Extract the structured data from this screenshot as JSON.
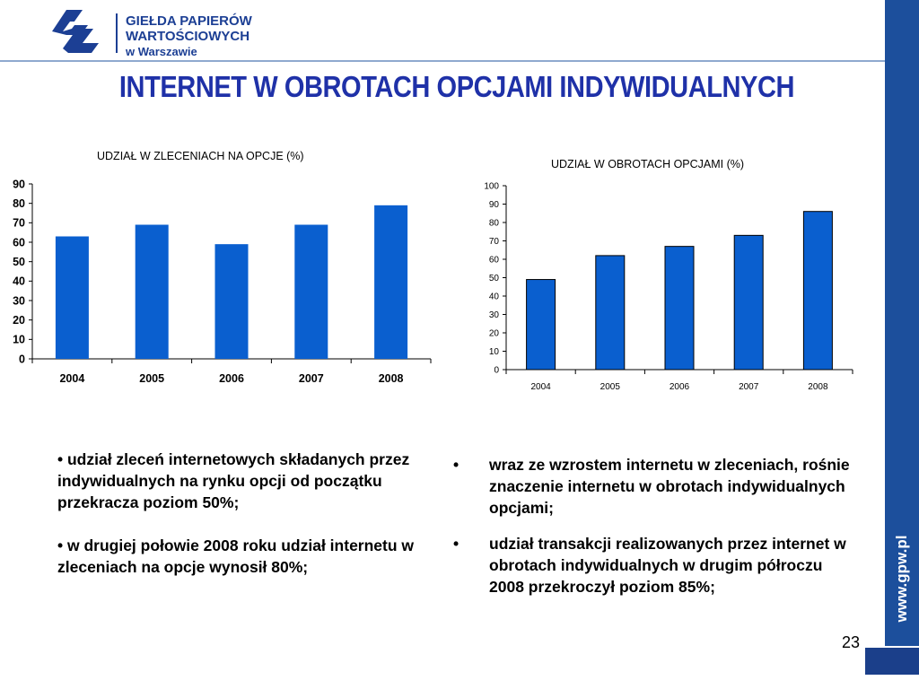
{
  "header": {
    "logo_line1": "GIEŁDA PAPIERÓW",
    "logo_line2": "WARTOŚCIOWYCH",
    "logo_line3": "w Warszawie",
    "side_url": "www.gpw.pl"
  },
  "title": "INTERNET W OBROTACH OPCJAMI INDYWIDUALNYCH",
  "colors": {
    "bar": "#0a5fcf",
    "brand": "#1c3f94",
    "title": "#1f31a8"
  },
  "chart_data": [
    {
      "type": "bar",
      "title": "UDZIAŁ W ZLECENIACH NA OPCJE (%)",
      "categories": [
        "2004",
        "2005",
        "2006",
        "2007",
        "2008"
      ],
      "values": [
        63,
        69,
        59,
        69,
        79
      ],
      "ylim": [
        0,
        90
      ],
      "yticks": [
        0,
        10,
        20,
        30,
        40,
        50,
        60,
        70,
        80,
        90
      ],
      "xlabel": "",
      "ylabel": "",
      "grid": false,
      "legend": "none"
    },
    {
      "type": "bar",
      "title": "UDZIAŁ W OBROTACH OPCJAMI (%)",
      "categories": [
        "2004",
        "2005",
        "2006",
        "2007",
        "2008"
      ],
      "values": [
        49,
        62,
        67,
        73,
        86
      ],
      "ylim": [
        0,
        100
      ],
      "yticks": [
        0,
        10,
        20,
        30,
        40,
        50,
        60,
        70,
        80,
        90,
        100
      ],
      "xlabel": "",
      "ylabel": "",
      "grid": false,
      "legend": "none"
    }
  ],
  "left_bullets": [
    "• udział zleceń internetowych składanych przez indywidualnych na rynku opcji od początku  przekracza poziom 50%;",
    "• w drugiej połowie 2008 roku udział internetu w zleceniach na opcje wynosił 80%;"
  ],
  "right_bullets": {
    "marker": "•",
    "items": [
      "wraz ze wzrostem  internetu w zleceniach, rośnie znaczenie internetu w obrotach indywidualnych opcjami;",
      "udział transakcji realizowanych przez internet w obrotach indywidualnych w  drugim półroczu 2008 przekroczył poziom 85%;"
    ]
  },
  "page_number": "23"
}
